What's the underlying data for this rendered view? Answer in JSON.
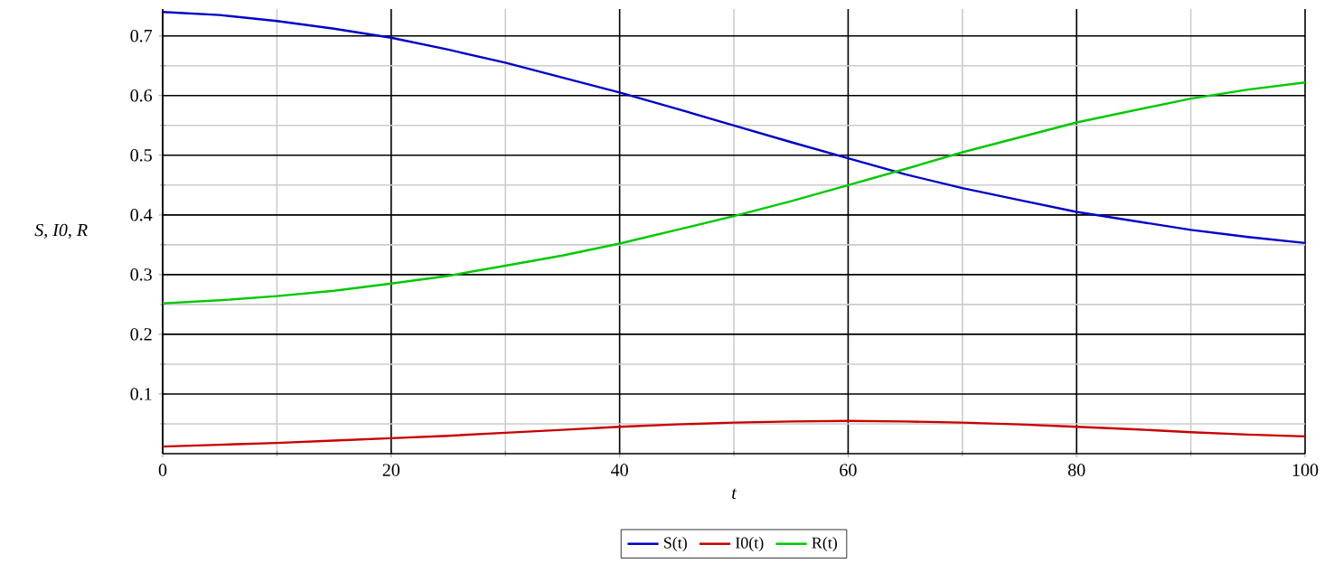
{
  "chart_data": {
    "type": "line",
    "xlabel": "t",
    "ylabel": "S, I0, R",
    "x": [
      0,
      5,
      10,
      15,
      20,
      25,
      30,
      35,
      40,
      45,
      50,
      55,
      60,
      65,
      70,
      75,
      80,
      85,
      90,
      95,
      100
    ],
    "series": [
      {
        "name": "S(t)",
        "color": "#0000c8",
        "values": [
          0.74,
          0.735,
          0.725,
          0.712,
          0.697,
          0.677,
          0.655,
          0.63,
          0.605,
          0.578,
          0.55,
          0.522,
          0.495,
          0.468,
          0.445,
          0.425,
          0.405,
          0.39,
          0.375,
          0.363,
          0.353
        ]
      },
      {
        "name": "I0(t)",
        "color": "#c80000",
        "values": [
          0.012,
          0.015,
          0.018,
          0.022,
          0.026,
          0.03,
          0.035,
          0.04,
          0.045,
          0.049,
          0.052,
          0.054,
          0.055,
          0.054,
          0.052,
          0.049,
          0.045,
          0.041,
          0.036,
          0.032,
          0.029
        ]
      },
      {
        "name": "R(t)",
        "color": "#00c800",
        "values": [
          0.252,
          0.257,
          0.264,
          0.273,
          0.285,
          0.298,
          0.315,
          0.332,
          0.352,
          0.375,
          0.398,
          0.423,
          0.45,
          0.477,
          0.505,
          0.53,
          0.555,
          0.575,
          0.595,
          0.61,
          0.622
        ]
      }
    ],
    "xlim": [
      0,
      100
    ],
    "ylim": [
      0,
      0.745
    ],
    "xticks": [
      0,
      {
        "value": 10,
        "label": null
      },
      20,
      {
        "value": 30,
        "label": null
      },
      40,
      {
        "value": 50,
        "label": null
      },
      60,
      {
        "value": 70,
        "label": null
      },
      80,
      {
        "value": 90,
        "label": null
      },
      100
    ],
    "yticks": [
      {
        "value": 0.05,
        "label": null
      },
      0.1,
      {
        "value": 0.15,
        "label": null
      },
      0.2,
      {
        "value": 0.25,
        "label": null
      },
      0.3,
      {
        "value": 0.35,
        "label": null
      },
      0.4,
      {
        "value": 0.45,
        "label": null
      },
      0.5,
      {
        "value": 0.55,
        "label": null
      },
      0.6,
      {
        "value": 0.65,
        "label": null
      },
      0.7
    ],
    "grid": true,
    "legend": "bottom",
    "marker": "none",
    "line_style": "solid"
  }
}
